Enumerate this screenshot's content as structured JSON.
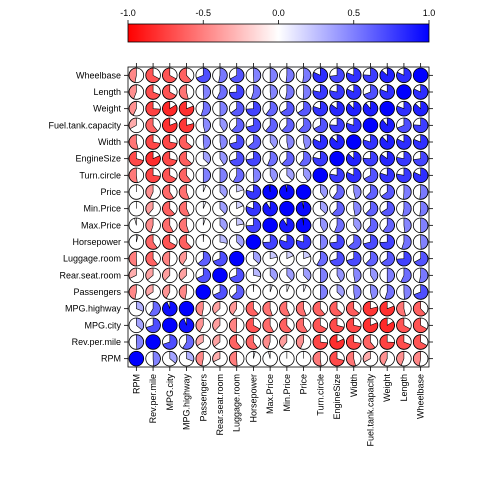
{
  "chart_data": {
    "type": "heatmap",
    "style": "pie-correlogram",
    "title": "",
    "color_scale": {
      "min": -1.0,
      "max": 1.0,
      "low_color": "#ff0000",
      "mid_color": "#ffffff",
      "high_color": "#0000ff",
      "ticks": [
        -1.0,
        -0.5,
        0.0,
        0.5,
        1.0
      ],
      "tick_labels": [
        "-1.0",
        "-0.5",
        "0.0",
        "0.5",
        "1.0"
      ]
    },
    "variables": [
      "RPM",
      "Rev.per.mile",
      "MPG.city",
      "MPG.highway",
      "Passengers",
      "Rear.seat.room",
      "Luggage.room",
      "Horsepower",
      "Max.Price",
      "Min.Price",
      "Price",
      "Turn.circle",
      "EngineSize",
      "Width",
      "Fuel.tank.capacity",
      "Weight",
      "Length",
      "Wheelbase"
    ],
    "matrix": [
      [
        1.0,
        0.49,
        0.36,
        0.31,
        -0.47,
        -0.32,
        -0.51,
        0.04,
        -0.04,
        -0.0,
        -0.0,
        -0.52,
        -0.71,
        -0.54,
        -0.33,
        -0.43,
        -0.44,
        -0.47
      ],
      [
        0.49,
        1.0,
        0.7,
        0.59,
        -0.34,
        -0.36,
        -0.61,
        -0.6,
        -0.45,
        -0.39,
        -0.43,
        -0.73,
        -0.82,
        -0.72,
        -0.61,
        -0.74,
        -0.69,
        -0.67
      ],
      [
        0.36,
        0.7,
        1.0,
        0.94,
        -0.42,
        -0.38,
        -0.49,
        -0.67,
        -0.58,
        -0.62,
        -0.59,
        -0.67,
        -0.71,
        -0.72,
        -0.81,
        -0.84,
        -0.67,
        -0.67
      ],
      [
        0.31,
        0.59,
        0.94,
        1.0,
        -0.47,
        -0.37,
        -0.41,
        -0.62,
        -0.55,
        -0.57,
        -0.56,
        -0.61,
        -0.63,
        -0.64,
        -0.79,
        -0.81,
        -0.54,
        -0.62
      ],
      [
        -0.47,
        -0.34,
        -0.42,
        -0.47,
        1.0,
        0.68,
        0.63,
        0.01,
        0.05,
        0.06,
        0.06,
        0.5,
        0.37,
        0.48,
        0.46,
        0.55,
        0.49,
        0.69
      ],
      [
        -0.32,
        -0.36,
        -0.38,
        -0.37,
        0.68,
        1.0,
        0.69,
        0.28,
        0.38,
        0.38,
        0.38,
        0.5,
        0.41,
        0.47,
        0.41,
        0.5,
        0.57,
        0.53
      ],
      [
        -0.51,
        -0.61,
        -0.49,
        -0.41,
        0.63,
        0.69,
        1.0,
        0.37,
        0.22,
        0.18,
        0.2,
        0.58,
        0.7,
        0.71,
        0.62,
        0.65,
        0.74,
        0.67
      ],
      [
        0.04,
        -0.6,
        -0.67,
        -0.62,
        0.01,
        0.28,
        0.37,
        1.0,
        0.74,
        0.8,
        0.79,
        0.49,
        0.73,
        0.64,
        0.71,
        0.74,
        0.55,
        0.49
      ],
      [
        -0.04,
        -0.45,
        -0.58,
        -0.55,
        0.05,
        0.38,
        0.22,
        0.74,
        1.0,
        0.91,
        0.98,
        0.42,
        0.56,
        0.4,
        0.61,
        0.6,
        0.48,
        0.5
      ],
      [
        -0.0,
        -0.39,
        -0.62,
        -0.57,
        0.06,
        0.38,
        0.18,
        0.8,
        0.91,
        1.0,
        0.97,
        0.37,
        0.62,
        0.47,
        0.62,
        0.66,
        0.53,
        0.52
      ],
      [
        -0.0,
        -0.43,
        -0.59,
        -0.56,
        0.06,
        0.38,
        0.2,
        0.79,
        0.98,
        0.97,
        1.0,
        0.4,
        0.6,
        0.46,
        0.62,
        0.65,
        0.51,
        0.52
      ],
      [
        -0.52,
        -0.73,
        -0.67,
        -0.61,
        0.5,
        0.5,
        0.58,
        0.49,
        0.42,
        0.37,
        0.4,
        1.0,
        0.78,
        0.82,
        0.67,
        0.8,
        0.78,
        0.82
      ],
      [
        -0.71,
        -0.82,
        -0.71,
        -0.63,
        0.37,
        0.41,
        0.7,
        0.73,
        0.56,
        0.62,
        0.6,
        0.78,
        1.0,
        0.87,
        0.76,
        0.85,
        0.78,
        0.73
      ],
      [
        -0.54,
        -0.72,
        -0.72,
        -0.64,
        0.48,
        0.47,
        0.71,
        0.64,
        0.4,
        0.47,
        0.46,
        0.82,
        0.87,
        1.0,
        0.8,
        0.88,
        0.82,
        0.81
      ],
      [
        -0.33,
        -0.61,
        -0.81,
        -0.79,
        0.46,
        0.41,
        0.62,
        0.71,
        0.61,
        0.62,
        0.62,
        0.67,
        0.76,
        0.8,
        1.0,
        0.89,
        0.69,
        0.76
      ],
      [
        -0.43,
        -0.74,
        -0.84,
        -0.81,
        0.55,
        0.5,
        0.65,
        0.74,
        0.6,
        0.66,
        0.65,
        0.8,
        0.85,
        0.88,
        0.89,
        1.0,
        0.81,
        0.87
      ],
      [
        -0.44,
        -0.69,
        -0.67,
        -0.54,
        0.49,
        0.57,
        0.74,
        0.55,
        0.48,
        0.53,
        0.51,
        0.78,
        0.78,
        0.82,
        0.69,
        0.81,
        1.0,
        0.82
      ],
      [
        -0.47,
        -0.67,
        -0.67,
        -0.62,
        0.69,
        0.53,
        0.67,
        0.49,
        0.5,
        0.52,
        0.52,
        0.82,
        0.73,
        0.81,
        0.76,
        0.87,
        0.82,
        1.0
      ]
    ],
    "grid": false,
    "legend": "top"
  }
}
